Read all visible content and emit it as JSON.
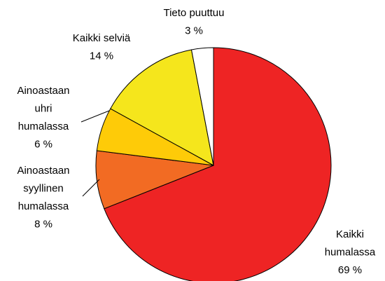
{
  "chart_data": {
    "type": "pie",
    "categories": [
      "Kaikki humalassa",
      "Ainoastaan syyllinen humalassa",
      "Ainoastaan uhri humalassa",
      "Kaikki selviä",
      "Tieto puuttuu"
    ],
    "values": [
      69,
      8,
      6,
      14,
      3
    ],
    "value_labels": [
      "69 %",
      "8 %",
      "6 %",
      "14 %",
      "3 %"
    ],
    "colors": [
      "#ee2424",
      "#f26b23",
      "#fecb08",
      "#f5e61c",
      "#ffffff"
    ]
  }
}
